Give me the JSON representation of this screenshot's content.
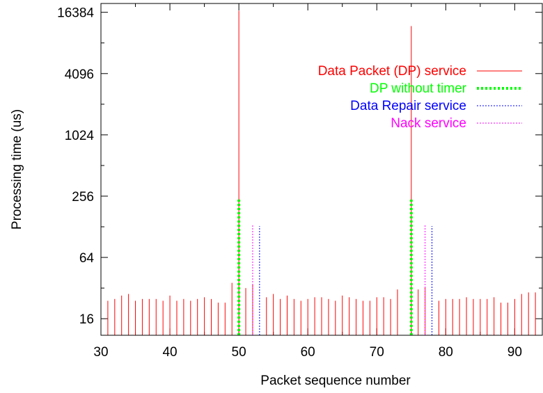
{
  "chart_data": {
    "type": "impulse",
    "xlabel": "Packet sequence number",
    "ylabel": "Processing time (us)",
    "y_scale": "log2",
    "xlim": [
      30,
      94
    ],
    "ylim": [
      11,
      20000
    ],
    "x_ticks": [
      30,
      40,
      50,
      60,
      70,
      80,
      90
    ],
    "y_ticks": [
      16,
      64,
      256,
      1024,
      4096,
      16384
    ],
    "legend_position": "top-right",
    "series": [
      {
        "name": "Data Packet (DP) service",
        "color": "#ff0000",
        "style": "solid",
        "points": [
          [
            30,
            25
          ],
          [
            31,
            24
          ],
          [
            32,
            25
          ],
          [
            33,
            27
          ],
          [
            34,
            28
          ],
          [
            35,
            24
          ],
          [
            36,
            25
          ],
          [
            37,
            25
          ],
          [
            38,
            25
          ],
          [
            39,
            24
          ],
          [
            40,
            27
          ],
          [
            41,
            24
          ],
          [
            42,
            25
          ],
          [
            43,
            24
          ],
          [
            44,
            25
          ],
          [
            45,
            26
          ],
          [
            46,
            25
          ],
          [
            47,
            23
          ],
          [
            48,
            23
          ],
          [
            49,
            36
          ],
          [
            50,
            17000
          ],
          [
            51,
            32
          ],
          [
            52,
            35
          ],
          [
            54,
            26
          ],
          [
            55,
            28
          ],
          [
            56,
            25
          ],
          [
            57,
            27
          ],
          [
            58,
            25
          ],
          [
            59,
            24
          ],
          [
            60,
            25
          ],
          [
            61,
            26
          ],
          [
            62,
            26
          ],
          [
            63,
            25
          ],
          [
            64,
            24
          ],
          [
            65,
            27
          ],
          [
            66,
            26
          ],
          [
            67,
            25
          ],
          [
            68,
            24
          ],
          [
            69,
            24
          ],
          [
            70,
            26
          ],
          [
            71,
            26
          ],
          [
            72,
            25
          ],
          [
            73,
            31
          ],
          [
            75,
            12000
          ],
          [
            76,
            31
          ],
          [
            77,
            33
          ],
          [
            79,
            24
          ],
          [
            80,
            25
          ],
          [
            81,
            25
          ],
          [
            82,
            25
          ],
          [
            83,
            26
          ],
          [
            84,
            25
          ],
          [
            85,
            25
          ],
          [
            86,
            25
          ],
          [
            87,
            26
          ],
          [
            88,
            23
          ],
          [
            89,
            23
          ],
          [
            90,
            25
          ],
          [
            91,
            28
          ],
          [
            92,
            29
          ],
          [
            93,
            29
          ],
          [
            94,
            32
          ]
        ]
      },
      {
        "name": "DP without timer",
        "color": "#00ff00",
        "style": "thick-dotted",
        "points": [
          [
            50,
            240
          ],
          [
            75,
            240
          ]
        ]
      },
      {
        "name": "Data Repair service",
        "color": "#0000ff",
        "style": "dotted",
        "points": [
          [
            53,
            130
          ],
          [
            78,
            130
          ]
        ]
      },
      {
        "name": "Nack service",
        "color": "#ff00ff",
        "style": "dotted",
        "points": [
          [
            52,
            135
          ],
          [
            77,
            135
          ]
        ]
      }
    ]
  }
}
